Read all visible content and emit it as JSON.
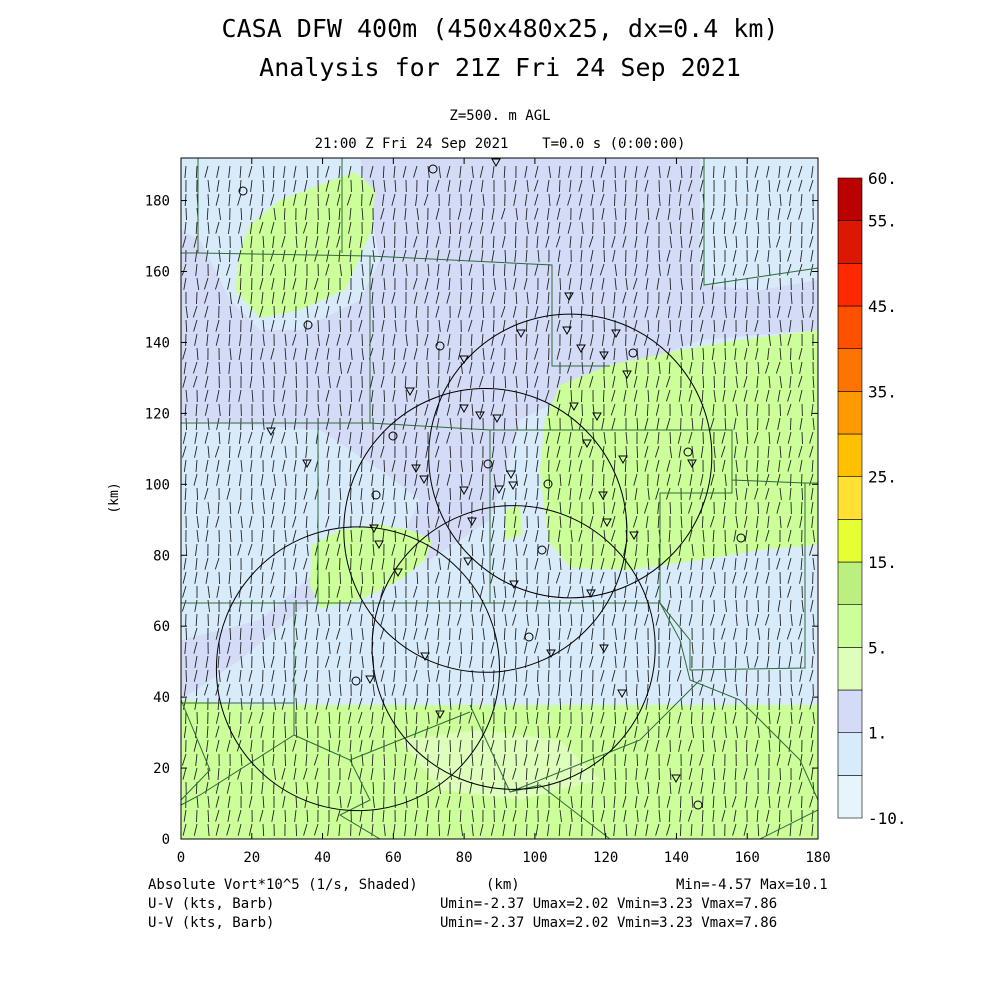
{
  "title_line1": "CASA DFW 400m (450x480x25, dx=0.4 km)",
  "title_line2": "Analysis for 21Z Fri 24 Sep 2021",
  "subtitle_level": "Z=500. m AGL",
  "subtitle_time": "21:00 Z Fri 24 Sep 2021    T=0.0 s (0:00:00)",
  "footer": {
    "field_label": "Absolute Vort*10^5 (1/s, Shaded)",
    "x_unit": "(km)",
    "minmax": "Min=-4.57 Max=10.1",
    "barb_label_1": "U-V (kts, Barb)",
    "barb_label_2": "U-V (kts, Barb)",
    "uv_range_1": "Umin=-2.37 Umax=2.02 Vmin=3.23 Vmax=7.86",
    "uv_range_2": "Umin=-2.37 Umax=2.02 Vmin=3.23 Vmax=7.86"
  },
  "colors": {
    "green_light": "#ccff99",
    "green_pale": "#ddffbb",
    "lavender": "#d4dbf7",
    "blue_light": "#d8ebfb",
    "county_lines": "#2e6b3a"
  },
  "chart_data": {
    "type": "heatmap",
    "xlabel": "(km)",
    "ylabel": "(km)",
    "xlim": [
      0,
      180
    ],
    "ylim": [
      0,
      192
    ],
    "x_ticks": [
      0,
      20,
      40,
      60,
      80,
      100,
      120,
      140,
      160,
      180
    ],
    "y_ticks": [
      0,
      20,
      40,
      60,
      80,
      100,
      120,
      140,
      160,
      180
    ],
    "colorbar": {
      "levels": [
        -10,
        -1,
        1,
        3,
        5,
        10,
        15,
        20,
        25,
        30,
        35,
        40,
        45,
        50,
        55,
        60
      ],
      "tick_labels": [
        {
          "value": -10,
          "text": "-10."
        },
        {
          "value": 1,
          "text": "1."
        },
        {
          "value": 5,
          "text": "5."
        },
        {
          "value": 15,
          "text": "15."
        },
        {
          "value": 25,
          "text": "25."
        },
        {
          "value": 35,
          "text": "35."
        },
        {
          "value": 45,
          "text": "45."
        },
        {
          "value": 55,
          "text": "55."
        },
        {
          "value": 60,
          "text": "60."
        }
      ],
      "colors": [
        "#e6f5fc",
        "#d8ebfb",
        "#d4dbf7",
        "#ddffbb",
        "#ccff99",
        "#bbf080",
        "#e6ff33",
        "#ffe033",
        "#ffc000",
        "#ff9900",
        "#ff7300",
        "#ff5000",
        "#ff2800",
        "#dd1800",
        "#bb0000"
      ]
    },
    "min_value": -4.57,
    "max_value": 10.1,
    "radar_rings": [
      {
        "cx": 110,
        "cy": 108,
        "r": 40
      },
      {
        "cx": 86,
        "cy": 87,
        "r": 40
      },
      {
        "cx": 94,
        "cy": 54,
        "r": 40
      },
      {
        "cx": 50,
        "cy": 48,
        "r": 40
      }
    ],
    "barbs": {
      "u_range": [
        -2.37,
        2.02
      ],
      "v_range": [
        3.23,
        7.86
      ]
    }
  }
}
